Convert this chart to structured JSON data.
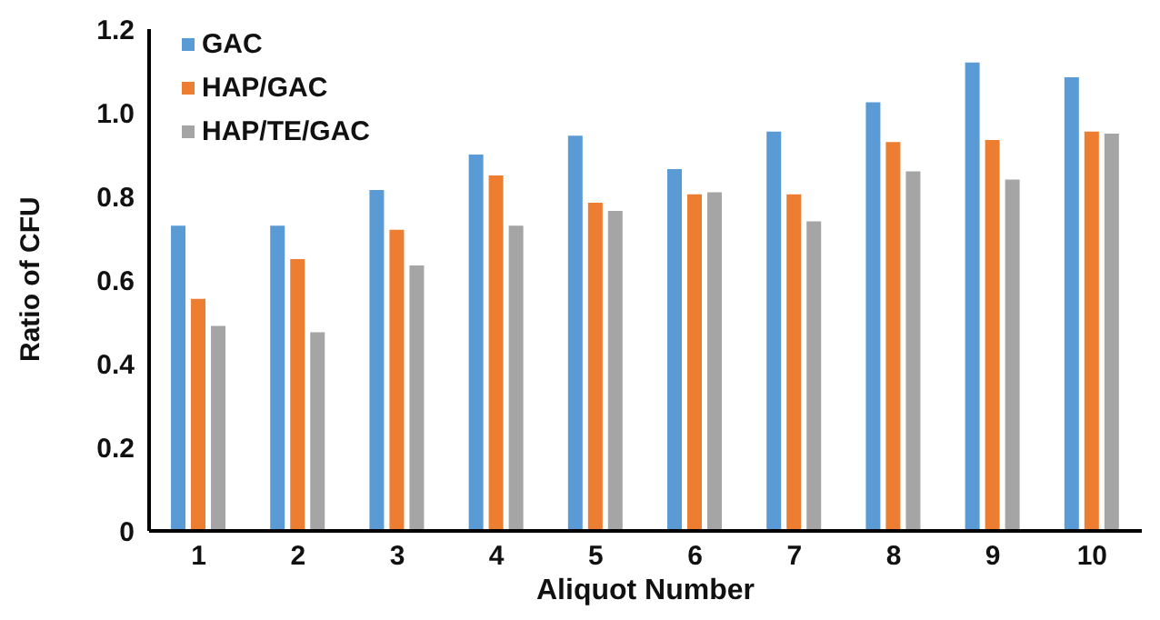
{
  "chart_data": {
    "type": "bar",
    "xlabel": "Aliquot Number",
    "ylabel": "Ratio of CFU",
    "categories": [
      "1",
      "2",
      "3",
      "4",
      "5",
      "6",
      "7",
      "8",
      "9",
      "10"
    ],
    "series": [
      {
        "name": "GAC",
        "color": "#5b9bd5",
        "values": [
          0.73,
          0.73,
          0.815,
          0.9,
          0.945,
          0.865,
          0.955,
          1.025,
          1.12,
          1.085
        ]
      },
      {
        "name": "HAP/GAC",
        "color": "#ed7d31",
        "values": [
          0.555,
          0.65,
          0.72,
          0.85,
          0.785,
          0.805,
          0.805,
          0.93,
          0.935,
          0.955
        ]
      },
      {
        "name": "HAP/TE/GAC",
        "color": "#a5a5a5",
        "values": [
          0.49,
          0.475,
          0.635,
          0.73,
          0.765,
          0.81,
          0.74,
          0.86,
          0.84,
          0.95
        ]
      }
    ],
    "ylim": [
      0,
      1.2
    ],
    "yticks": [
      0,
      {
        "value": 0.2,
        "label": "0.2"
      },
      {
        "value": 0.4,
        "label": "0.4"
      },
      {
        "value": 0.6,
        "label": "0.6"
      },
      {
        "value": 0.8,
        "label": "0.8"
      },
      {
        "value": 1,
        "label": "1.0"
      },
      {
        "value": 1.2,
        "label": "1.2"
      }
    ],
    "grid": false,
    "legend": "top left"
  }
}
